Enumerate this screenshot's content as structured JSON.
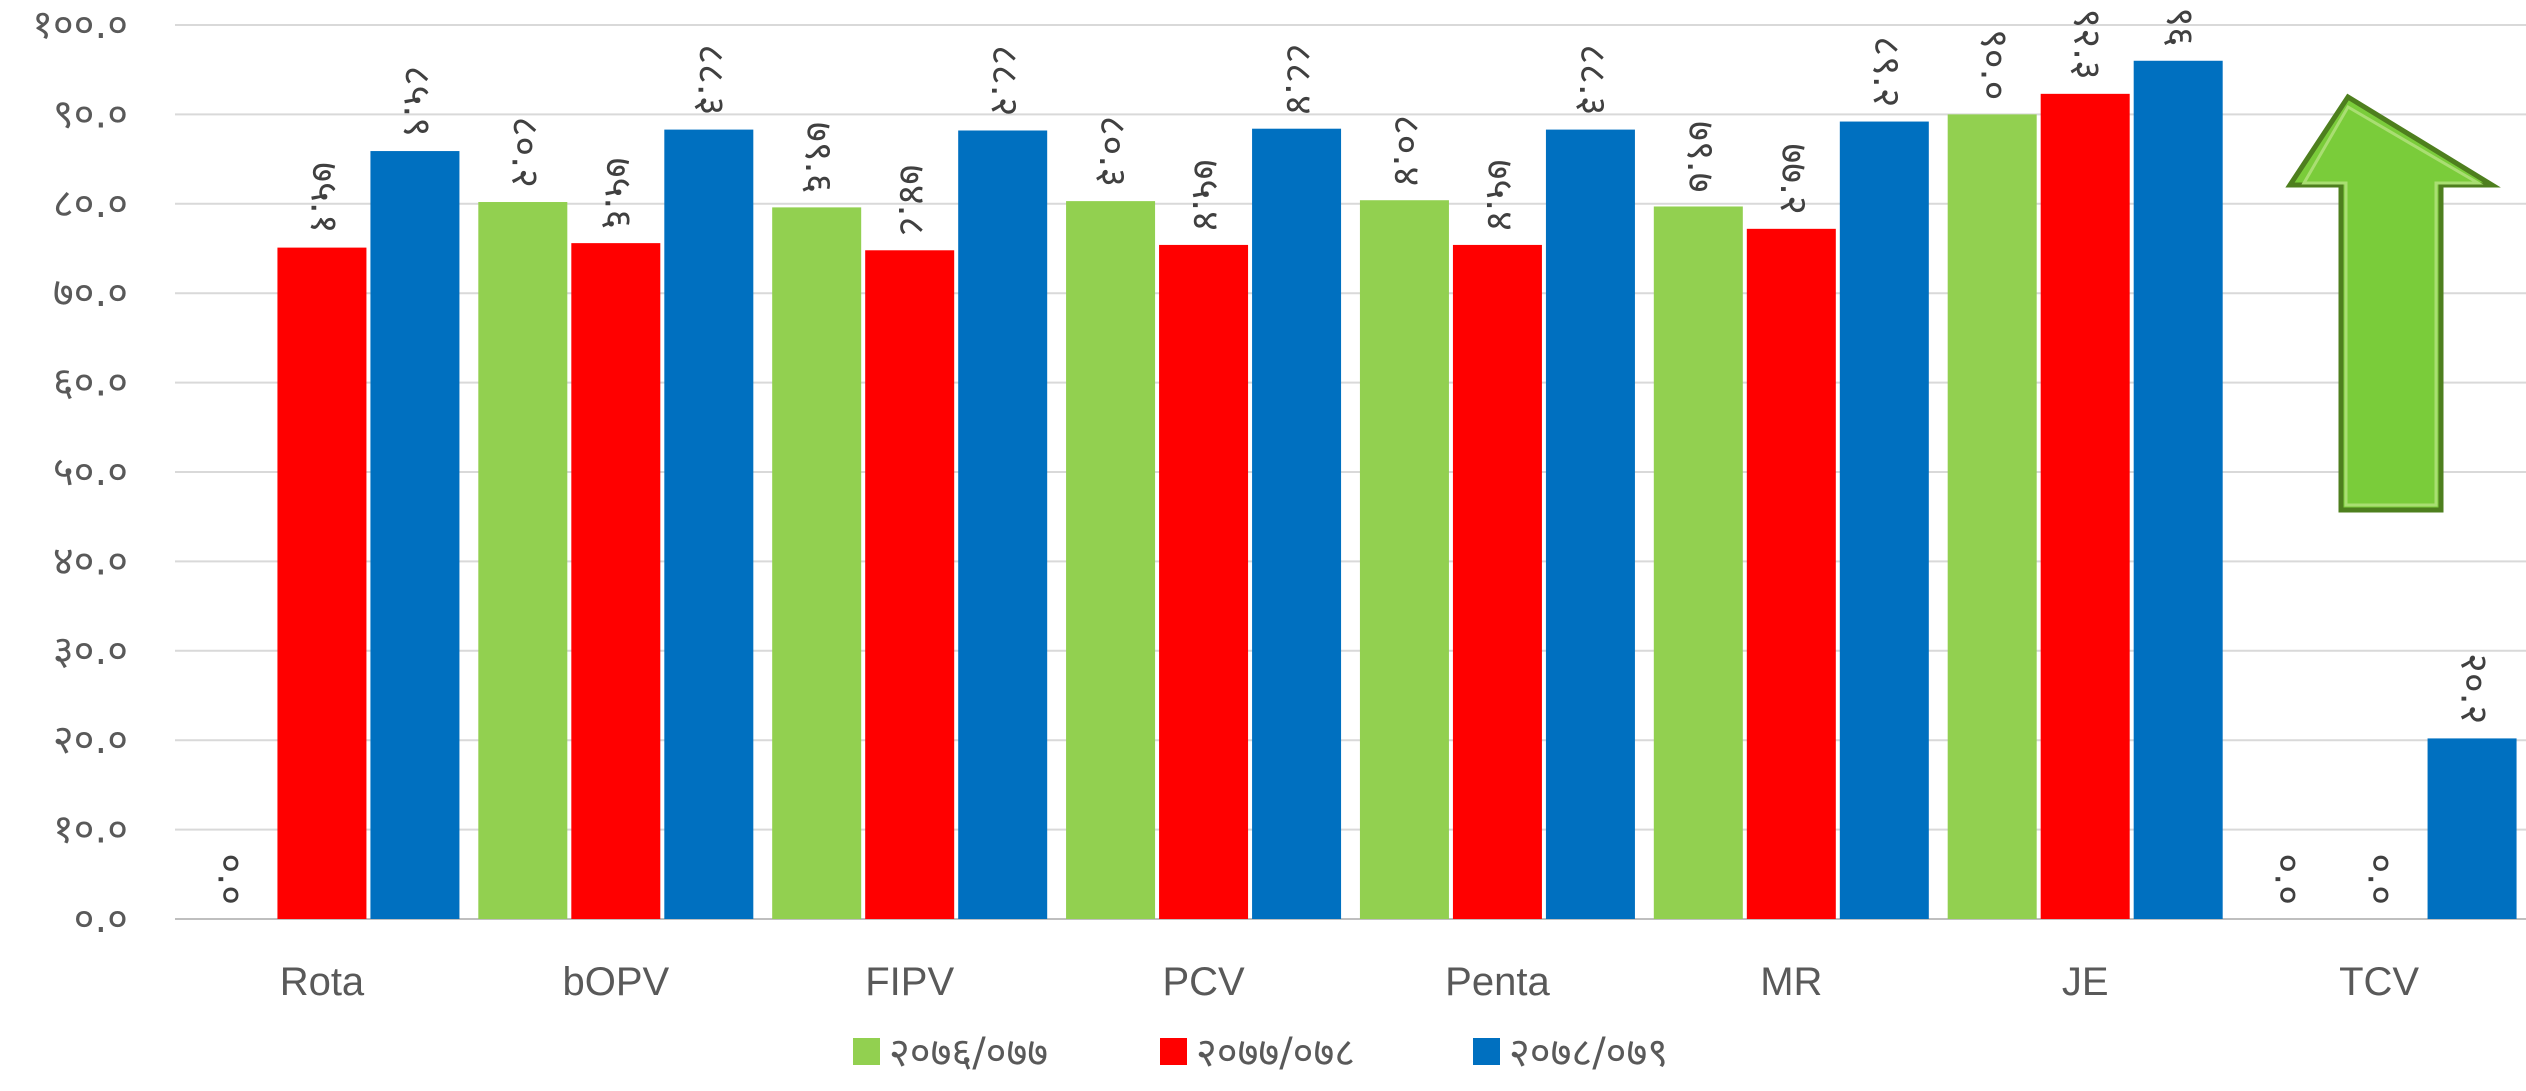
{
  "chart_data": {
    "type": "bar",
    "title": "",
    "xlabel": "",
    "ylabel": "",
    "ylim": [
      0,
      100
    ],
    "y_ticks": [
      "०.०",
      "१०.०",
      "२०.०",
      "३०.०",
      "४०.०",
      "५०.०",
      "६०.०",
      "७०.०",
      "८०.०",
      "९०.०",
      "१००.०"
    ],
    "grid": true,
    "legend_position": "bottom",
    "categories": [
      "Rota",
      "bOPV",
      "FIPV",
      "PCV",
      "Penta",
      "MR",
      "JE",
      "TCV"
    ],
    "series": [
      {
        "name": "२०७६/०७७",
        "color": "#92D050",
        "values": [
          0.0,
          80.2,
          79.6,
          80.3,
          80.4,
          79.7,
          90.0,
          0.0
        ],
        "labels": [
          "०.०",
          "८०.२",
          "७९.६",
          "८०.३",
          "८०.४",
          "७९.७",
          "९०.०",
          "०.०"
        ]
      },
      {
        "name": "२०७७/०७८",
        "color": "#FF0000",
        "values": [
          75.1,
          75.6,
          74.8,
          75.4,
          75.4,
          77.2,
          92.3,
          0.0
        ],
        "labels": [
          "७५.१",
          "७५.६",
          "७४.८",
          "७५.४",
          "७५.४",
          "७७.२",
          "९२.३",
          "०.०"
        ]
      },
      {
        "name": "२०७८/०७९",
        "color": "#0070C0",
        "values": [
          85.9,
          88.3,
          88.2,
          88.4,
          88.3,
          89.2,
          96.0,
          20.2
        ],
        "labels": [
          "८५.९",
          "८८.३",
          "८८.२",
          "८८.४",
          "८८.३",
          "८९.२",
          "९६",
          "२०.२"
        ]
      }
    ],
    "annotations": [
      {
        "type": "arrow-up",
        "name": "green-up-arrow",
        "color": "#7ACC3A"
      }
    ]
  }
}
